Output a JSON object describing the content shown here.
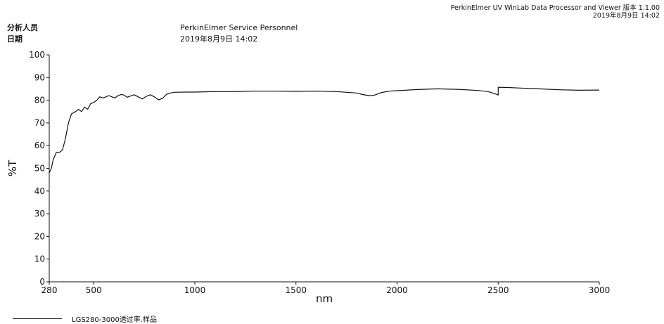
{
  "header": {
    "software": "PerkinElmer UV WinLab Data Processor and Viewer 版本 1.1.00",
    "timestamp": "2019年8月9日 14:02"
  },
  "meta": {
    "analyst_label": "分析人员",
    "date_label": "日期",
    "analyst_value": "PerkinElmer Service Personnel",
    "date_value": "2019年8月9日 14:02"
  },
  "chart_data": {
    "type": "line",
    "xlabel": "nm",
    "ylabel": "%T",
    "xlim": [
      280,
      3000
    ],
    "ylim": [
      0,
      100
    ],
    "x_ticks": [
      280,
      500,
      1000,
      1500,
      2000,
      2500,
      3000
    ],
    "y_ticks": [
      0,
      10,
      20,
      30,
      40,
      50,
      60,
      70,
      80,
      90,
      100
    ],
    "grid": false,
    "legend": "bottom-left",
    "series": [
      {
        "name": "LGS280-3000透过率.样品",
        "color": "#111111",
        "x": [
          280,
          290,
          300,
          315,
          330,
          345,
          360,
          375,
          390,
          400,
          410,
          425,
          440,
          455,
          470,
          485,
          500,
          515,
          530,
          545,
          560,
          575,
          590,
          605,
          620,
          635,
          650,
          665,
          680,
          700,
          720,
          740,
          760,
          780,
          800,
          820,
          840,
          860,
          880,
          900,
          950,
          1000,
          1100,
          1200,
          1300,
          1400,
          1500,
          1600,
          1700,
          1750,
          1800,
          1830,
          1850,
          1870,
          1890,
          1920,
          1960,
          2000,
          2100,
          2200,
          2300,
          2400,
          2450,
          2480,
          2500,
          2500.1,
          2550,
          2600,
          2700,
          2800,
          2900,
          3000
        ],
        "values": [
          48,
          50,
          54,
          57,
          57,
          58,
          63,
          70,
          74,
          74.5,
          75,
          76,
          75,
          77,
          76,
          78.5,
          79,
          80,
          81.5,
          81,
          81.5,
          82,
          81.5,
          81,
          82,
          82.5,
          82.3,
          81.3,
          81.8,
          82.4,
          81.5,
          80.6,
          81.7,
          82.4,
          81.5,
          80.2,
          80.8,
          82.6,
          83.2,
          83.5,
          83.6,
          83.6,
          83.8,
          83.8,
          84,
          84,
          83.9,
          84,
          83.8,
          83.5,
          83.2,
          82.5,
          82.2,
          82,
          82.3,
          83.3,
          84,
          84.2,
          84.7,
          85,
          84.8,
          84.3,
          83.8,
          83,
          82.3,
          85.7,
          85.6,
          85.4,
          85,
          84.6,
          84.4,
          84.5
        ]
      }
    ]
  }
}
